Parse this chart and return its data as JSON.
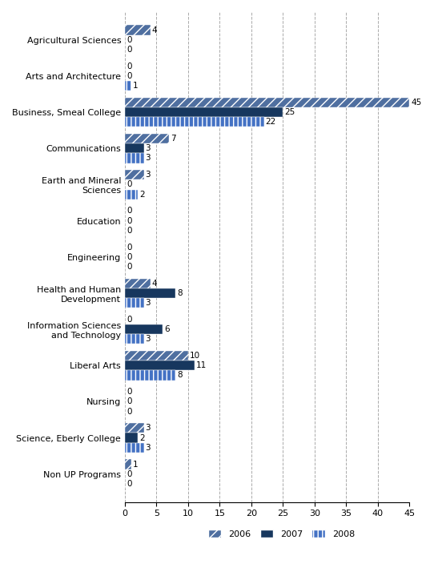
{
  "categories": [
    "Agricultural Sciences",
    "Arts and Architecture",
    "Business, Smeal College",
    "Communications",
    "Earth and Mineral\nSciences",
    "Education",
    "Engineering",
    "Health and Human\nDevelopment",
    "Information Sciences\nand Technology",
    "Liberal Arts",
    "Nursing",
    "Science, Eberly College",
    "Non UP Programs"
  ],
  "year2006": [
    4,
    0,
    45,
    7,
    3,
    0,
    0,
    4,
    0,
    10,
    0,
    3,
    1
  ],
  "year2007": [
    0,
    0,
    25,
    3,
    0,
    0,
    0,
    8,
    6,
    11,
    0,
    2,
    0
  ],
  "year2008": [
    0,
    1,
    22,
    3,
    2,
    0,
    0,
    3,
    3,
    8,
    0,
    3,
    0
  ],
  "color2006": "#4f6fa0",
  "color2007": "#17375e",
  "color2008": "#4472c4",
  "hatch2006": "///",
  "hatch2007": "",
  "hatch2008": "|||",
  "xlim": [
    0,
    45
  ],
  "xticks": [
    0,
    5,
    10,
    15,
    20,
    25,
    30,
    35,
    40,
    45
  ],
  "bar_height": 0.27,
  "figsize": [
    5.42,
    7.14
  ],
  "dpi": 100,
  "legend_labels": [
    "2006",
    "2007",
    "2008"
  ],
  "grid_color": "#aaaaaa",
  "label_fontsize": 7.5,
  "tick_fontsize": 8,
  "category_fontsize": 8
}
